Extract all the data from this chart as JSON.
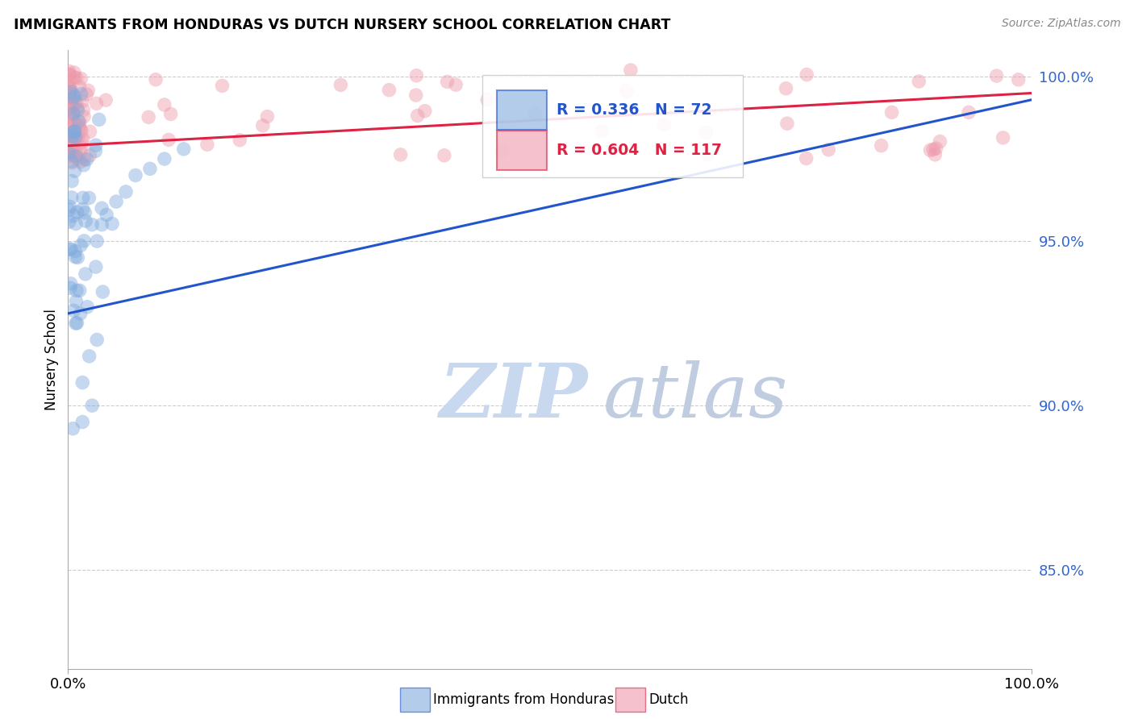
{
  "title": "IMMIGRANTS FROM HONDURAS VS DUTCH NURSERY SCHOOL CORRELATION CHART",
  "source": "Source: ZipAtlas.com",
  "ylabel": "Nursery School",
  "legend_blue_label": "Immigrants from Honduras",
  "legend_pink_label": "Dutch",
  "R_blue": 0.336,
  "N_blue": 72,
  "R_pink": 0.604,
  "N_pink": 117,
  "blue_color": "#7faadd",
  "pink_color": "#ee99aa",
  "trendline_blue": "#2255cc",
  "trendline_pink": "#dd2244",
  "watermark_zip_color": "#c8d8ee",
  "watermark_atlas_color": "#c0cce0",
  "xlim": [
    0.0,
    1.0
  ],
  "ylim": [
    0.82,
    1.008
  ],
  "yticks": [
    0.85,
    0.9,
    0.95,
    1.0
  ],
  "ytick_labels": [
    "85.0%",
    "90.0%",
    "95.0%",
    "100.0%"
  ],
  "background_color": "#ffffff",
  "grid_color": "#cccccc",
  "blue_trend_x0": 0.0,
  "blue_trend_y0": 0.928,
  "blue_trend_x1": 1.0,
  "blue_trend_y1": 0.993,
  "pink_trend_x0": 0.0,
  "pink_trend_y0": 0.979,
  "pink_trend_x1": 1.0,
  "pink_trend_y1": 0.995
}
